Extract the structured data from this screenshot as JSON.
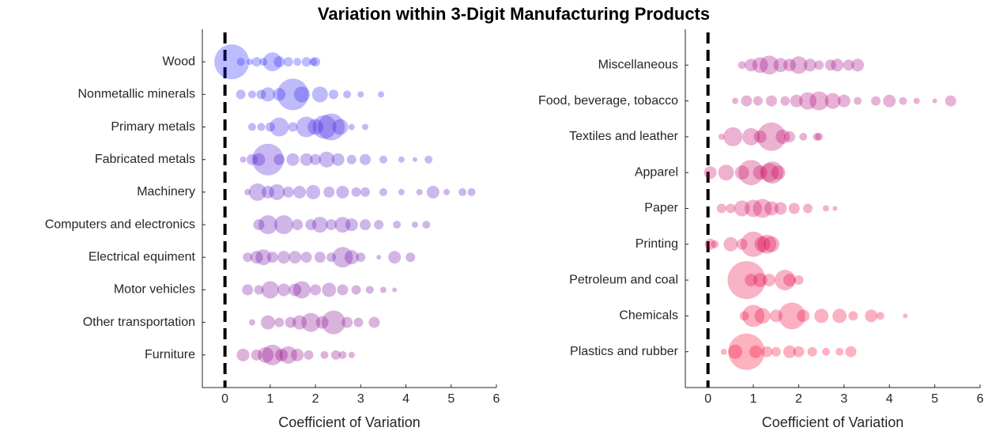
{
  "title": "Variation within 3-Digit Manufacturing Products",
  "chart_data": [
    {
      "type": "bubble",
      "xlabel": "Coefficient of Variation",
      "xlim": [
        -0.5,
        6
      ],
      "xticks": [
        0,
        1,
        2,
        3,
        4,
        5,
        6
      ],
      "vline": 0,
      "categories": [
        "Wood",
        "Nonmetallic minerals",
        "Primary metals",
        "Fabricated metals",
        "Machinery",
        "Computers and electronics",
        "Electrical equiment",
        "Motor vehicles",
        "Other transportation",
        "Furniture"
      ],
      "series": [
        {
          "color": "#2020ff",
          "x": [
            0.15,
            0.35,
            0.55,
            0.7,
            0.85,
            1.05,
            1.2,
            1.4,
            1.6,
            1.8,
            1.95,
            2.0
          ],
          "size": [
            22,
            5,
            4,
            6,
            5,
            12,
            7,
            6,
            5,
            6,
            5,
            6
          ]
        },
        {
          "color": "#2c1cf0",
          "x": [
            0.35,
            0.6,
            0.8,
            0.95,
            1.2,
            1.5,
            1.7,
            2.1,
            2.4,
            2.7,
            3.0,
            3.45
          ],
          "size": [
            6,
            5,
            6,
            9,
            8,
            20,
            10,
            10,
            6,
            5,
            4,
            4
          ]
        },
        {
          "color": "#3a18e0",
          "x": [
            0.6,
            0.8,
            1.0,
            1.2,
            1.5,
            1.8,
            2.0,
            2.2,
            2.35,
            2.55,
            2.8,
            3.1
          ],
          "size": [
            5,
            5,
            6,
            12,
            6,
            13,
            10,
            15,
            17,
            10,
            4,
            4
          ]
        },
        {
          "color": "#4814d0",
          "x": [
            0.4,
            0.6,
            0.75,
            0.95,
            1.2,
            1.5,
            1.8,
            2.0,
            2.25,
            2.5,
            2.8,
            3.1,
            3.5,
            3.9,
            4.2,
            4.5
          ],
          "size": [
            4,
            7,
            8,
            20,
            7,
            8,
            8,
            7,
            10,
            8,
            6,
            7,
            5,
            4,
            3,
            5
          ]
        },
        {
          "color": "#5410c4",
          "x": [
            0.5,
            0.72,
            0.95,
            1.15,
            1.4,
            1.65,
            1.95,
            2.3,
            2.6,
            2.9,
            3.1,
            3.5,
            3.9,
            4.3,
            4.6,
            4.9,
            5.25,
            5.45
          ],
          "size": [
            4,
            11,
            8,
            10,
            7,
            8,
            9,
            7,
            8,
            6,
            6,
            5,
            4,
            4,
            8,
            4,
            5,
            5
          ]
        },
        {
          "color": "#600cb4",
          "x": [
            0.75,
            0.95,
            1.3,
            1.6,
            1.9,
            2.1,
            2.35,
            2.6,
            2.8,
            3.1,
            3.4,
            3.8,
            4.2,
            4.45
          ],
          "size": [
            7,
            12,
            12,
            7,
            7,
            10,
            7,
            10,
            8,
            7,
            6,
            5,
            4,
            5
          ]
        },
        {
          "color": "#6c0aa8",
          "x": [
            0.5,
            0.7,
            0.85,
            1.05,
            1.3,
            1.55,
            1.8,
            2.1,
            2.35,
            2.6,
            2.8,
            3.0,
            3.4,
            3.75,
            4.1
          ],
          "size": [
            6,
            8,
            10,
            7,
            8,
            8,
            7,
            7,
            6,
            13,
            9,
            6,
            3,
            8,
            6
          ]
        },
        {
          "color": "#78069c",
          "x": [
            0.5,
            0.75,
            1.0,
            1.3,
            1.55,
            1.7,
            2.0,
            2.3,
            2.6,
            2.9,
            3.2,
            3.5,
            3.75
          ],
          "size": [
            7,
            6,
            11,
            8,
            8,
            11,
            7,
            9,
            7,
            6,
            5,
            4,
            3
          ]
        },
        {
          "color": "#840390",
          "x": [
            0.6,
            0.95,
            1.2,
            1.45,
            1.65,
            1.9,
            2.15,
            2.4,
            2.7,
            2.95,
            3.3
          ],
          "size": [
            4,
            9,
            6,
            7,
            9,
            12,
            8,
            15,
            7,
            6,
            7
          ]
        },
        {
          "color": "#900088",
          "x": [
            0.4,
            0.7,
            0.9,
            1.05,
            1.25,
            1.4,
            1.6,
            1.85,
            2.2,
            2.45,
            2.6,
            2.8
          ],
          "size": [
            8,
            7,
            10,
            13,
            8,
            11,
            8,
            6,
            5,
            6,
            5,
            4
          ]
        }
      ]
    },
    {
      "type": "bubble",
      "xlabel": "Coefficient of Variation",
      "xlim": [
        -0.5,
        6
      ],
      "xticks": [
        0,
        1,
        2,
        3,
        4,
        5,
        6
      ],
      "vline": 0,
      "categories": [
        "Miscellaneous",
        "Food, beverage, tobacco",
        "Textiles and leather",
        "Apparel",
        "Paper",
        "Printing",
        "Petroleum and coal",
        "Chemicals",
        "Plastics and rubber"
      ],
      "series": [
        {
          "color": "#a00080",
          "x": [
            0.75,
            0.95,
            1.15,
            1.35,
            1.6,
            1.8,
            2.0,
            2.25,
            2.45,
            2.7,
            2.85,
            3.1,
            3.3
          ],
          "size": [
            5,
            8,
            10,
            12,
            9,
            8,
            11,
            8,
            6,
            7,
            8,
            7,
            8
          ]
        },
        {
          "color": "#b00074",
          "x": [
            0.6,
            0.85,
            1.1,
            1.4,
            1.7,
            1.95,
            2.2,
            2.45,
            2.75,
            3.0,
            3.3,
            3.7,
            4.0,
            4.3,
            4.6,
            5.0,
            5.35
          ],
          "size": [
            4,
            7,
            6,
            7,
            6,
            8,
            11,
            12,
            10,
            8,
            5,
            6,
            8,
            5,
            4,
            3,
            7
          ]
        },
        {
          "color": "#bc006a",
          "x": [
            0.3,
            0.55,
            0.95,
            1.15,
            1.4,
            1.65,
            1.8,
            2.1,
            2.4,
            2.45
          ],
          "size": [
            4,
            12,
            11,
            8,
            18,
            9,
            7,
            5,
            5,
            5
          ]
        },
        {
          "color": "#c80060",
          "x": [
            0.05,
            0.4,
            0.75,
            0.95,
            1.15,
            1.35,
            1.42,
            1.55
          ],
          "size": [
            8,
            10,
            9,
            16,
            9,
            12,
            14,
            9
          ]
        },
        {
          "color": "#d40056",
          "x": [
            0.3,
            0.5,
            0.75,
            1.0,
            1.2,
            1.4,
            1.6,
            1.9,
            2.2,
            2.6,
            2.8
          ],
          "size": [
            6,
            6,
            10,
            11,
            12,
            9,
            8,
            7,
            6,
            4,
            3
          ]
        },
        {
          "color": "#de004c",
          "x": [
            0.05,
            0.15,
            0.5,
            0.75,
            1.0,
            1.2,
            1.3,
            1.4
          ],
          "size": [
            7,
            5,
            9,
            7,
            16,
            10,
            12,
            10
          ]
        },
        {
          "color": "#e80042",
          "x": [
            0.85,
            0.95,
            1.15,
            1.35,
            1.7,
            1.8,
            2.0
          ],
          "size": [
            24,
            8,
            9,
            8,
            13,
            8,
            6
          ]
        },
        {
          "color": "#f00036",
          "x": [
            0.8,
            1.0,
            1.2,
            1.5,
            1.85,
            2.1,
            2.5,
            2.9,
            3.2,
            3.6,
            3.8,
            4.35
          ],
          "size": [
            6,
            14,
            10,
            8,
            17,
            8,
            9,
            9,
            6,
            8,
            5,
            3
          ]
        },
        {
          "color": "#f8002a",
          "x": [
            0.35,
            0.6,
            0.85,
            1.05,
            1.3,
            1.5,
            1.8,
            2.0,
            2.3,
            2.6,
            2.9,
            3.15
          ],
          "size": [
            4,
            9,
            23,
            8,
            7,
            6,
            8,
            7,
            6,
            5,
            5,
            7
          ]
        }
      ]
    }
  ]
}
